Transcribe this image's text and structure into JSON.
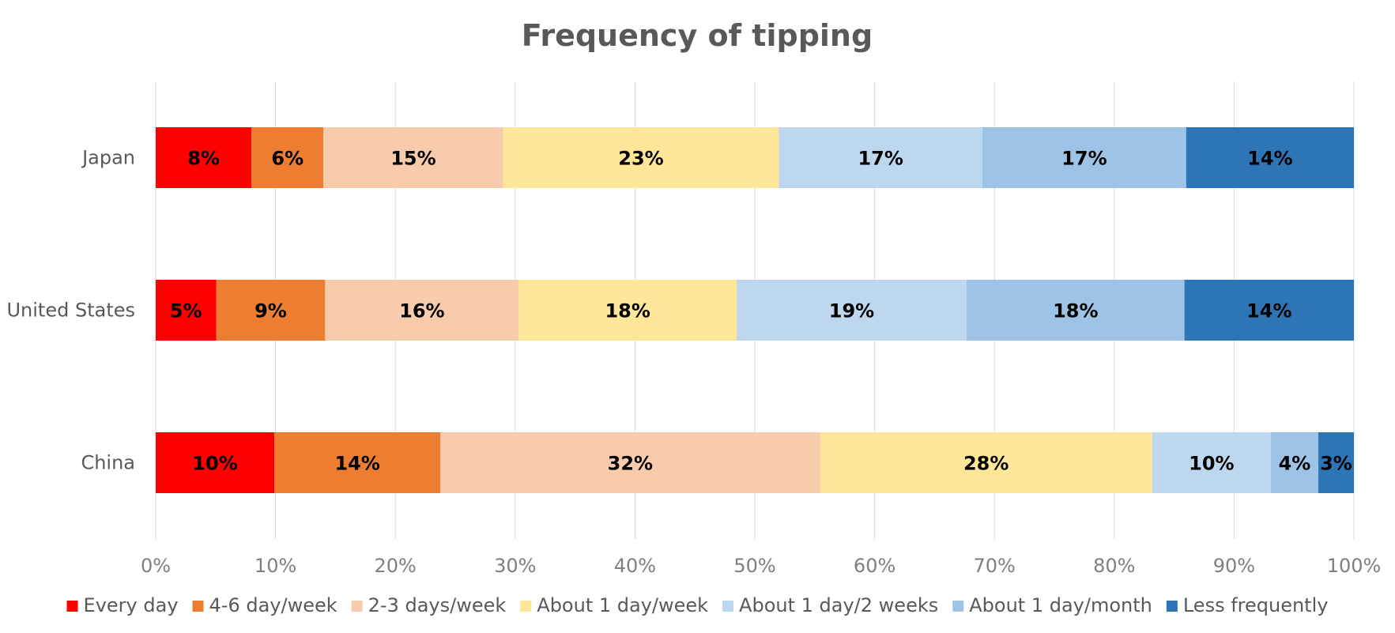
{
  "chart_data": {
    "type": "bar",
    "orientation": "horizontal",
    "stacked": "percent",
    "title": "Frequency of tipping",
    "categories": [
      "Japan",
      "United States",
      "China"
    ],
    "series": [
      {
        "name": "Every day",
        "color": "#ff0000",
        "values": [
          8,
          5,
          10
        ],
        "labels": [
          "8%",
          "5%",
          "10%"
        ]
      },
      {
        "name": "4-6 day/week",
        "color": "#ed7d31",
        "values": [
          6,
          9,
          14
        ],
        "labels": [
          "6%",
          "9%",
          "14%"
        ]
      },
      {
        "name": "2-3 days/week",
        "color": "#f8cbad",
        "values": [
          15,
          16,
          32
        ],
        "labels": [
          "15%",
          "16%",
          "32%"
        ]
      },
      {
        "name": "About 1 day/week",
        "color": "#ffe699",
        "values": [
          23,
          18,
          28
        ],
        "labels": [
          "23%",
          "18%",
          "28%"
        ]
      },
      {
        "name": "About 1 day/2 weeks",
        "color": "#bdd7ee",
        "values": [
          17,
          19,
          10
        ],
        "labels": [
          "17%",
          "19%",
          "10%"
        ]
      },
      {
        "name": "About 1 day/month",
        "color": "#9dc3e6",
        "values": [
          17,
          18,
          4
        ],
        "labels": [
          "17%",
          "18%",
          "4%"
        ]
      },
      {
        "name": "Less frequently",
        "color": "#2e75b6",
        "values": [
          14,
          14,
          3
        ],
        "labels": [
          "14%",
          "14%",
          "3%"
        ]
      }
    ],
    "xlim": [
      0,
      100
    ],
    "x_ticks": [
      "0%",
      "10%",
      "20%",
      "30%",
      "40%",
      "50%",
      "60%",
      "70%",
      "80%",
      "90%",
      "100%"
    ],
    "grid": "vertical",
    "legend": "bottom",
    "xlabel": "",
    "ylabel": ""
  }
}
